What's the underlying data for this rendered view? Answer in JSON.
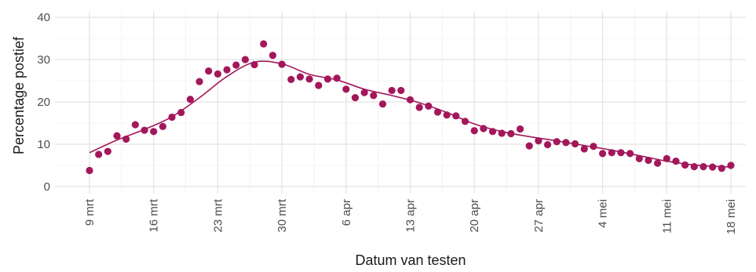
{
  "chart_data": {
    "type": "scatter",
    "title": "",
    "xlabel": "Datum van testen",
    "ylabel": "Percentage postief",
    "ylim": [
      0,
      40
    ],
    "yticks": [
      0,
      10,
      20,
      30,
      40
    ],
    "xticks": [
      {
        "date": "2020-03-09",
        "label": "9 mrt"
      },
      {
        "date": "2020-03-16",
        "label": "16 mrt"
      },
      {
        "date": "2020-03-23",
        "label": "23 mrt"
      },
      {
        "date": "2020-03-30",
        "label": "30 mrt"
      },
      {
        "date": "2020-04-06",
        "label": "6 apr"
      },
      {
        "date": "2020-04-13",
        "label": "13 apr"
      },
      {
        "date": "2020-04-20",
        "label": "20 apr"
      },
      {
        "date": "2020-04-27",
        "label": "27 apr"
      },
      {
        "date": "2020-05-04",
        "label": "4 mei"
      },
      {
        "date": "2020-05-11",
        "label": "11 mei"
      },
      {
        "date": "2020-05-18",
        "label": "18 mei"
      }
    ],
    "grid": true,
    "colors": {
      "points": "#a3175b",
      "trend": "#a3175b"
    },
    "series": [
      {
        "kind": "points",
        "x": [
          "2020-03-09",
          "2020-03-10",
          "2020-03-11",
          "2020-03-12",
          "2020-03-13",
          "2020-03-14",
          "2020-03-15",
          "2020-03-16",
          "2020-03-17",
          "2020-03-18",
          "2020-03-19",
          "2020-03-20",
          "2020-03-21",
          "2020-03-22",
          "2020-03-23",
          "2020-03-24",
          "2020-03-25",
          "2020-03-26",
          "2020-03-27",
          "2020-03-28",
          "2020-03-29",
          "2020-03-30",
          "2020-03-31",
          "2020-04-01",
          "2020-04-02",
          "2020-04-03",
          "2020-04-04",
          "2020-04-05",
          "2020-04-06",
          "2020-04-07",
          "2020-04-08",
          "2020-04-09",
          "2020-04-10",
          "2020-04-11",
          "2020-04-12",
          "2020-04-13",
          "2020-04-14",
          "2020-04-15",
          "2020-04-16",
          "2020-04-17",
          "2020-04-18",
          "2020-04-19",
          "2020-04-20",
          "2020-04-21",
          "2020-04-22",
          "2020-04-23",
          "2020-04-24",
          "2020-04-25",
          "2020-04-26",
          "2020-04-27",
          "2020-04-28",
          "2020-04-29",
          "2020-04-30",
          "2020-05-01",
          "2020-05-02",
          "2020-05-03",
          "2020-05-04",
          "2020-05-05",
          "2020-05-06",
          "2020-05-07",
          "2020-05-08",
          "2020-05-09",
          "2020-05-10",
          "2020-05-11",
          "2020-05-12",
          "2020-05-13",
          "2020-05-14",
          "2020-05-15",
          "2020-05-16",
          "2020-05-17",
          "2020-05-18"
        ],
        "y": [
          3.8,
          7.6,
          8.3,
          12.0,
          11.2,
          14.6,
          13.3,
          13.0,
          14.2,
          16.4,
          17.5,
          20.6,
          24.8,
          27.3,
          26.6,
          27.6,
          28.7,
          30.0,
          28.8,
          33.7,
          31.0,
          28.9,
          25.3,
          25.9,
          25.4,
          23.9,
          25.4,
          25.6,
          23.0,
          21.0,
          22.2,
          21.5,
          19.5,
          22.7,
          22.7,
          20.5,
          18.7,
          19.0,
          17.6,
          16.9,
          16.7,
          15.4,
          13.2,
          13.7,
          13.0,
          12.6,
          12.5,
          13.6,
          9.6,
          10.8,
          9.9,
          10.6,
          10.4,
          10.1,
          8.9,
          9.5,
          7.8,
          8.0,
          8.0,
          7.8,
          6.6,
          6.2,
          5.5,
          6.6,
          6.0,
          5.1,
          4.7,
          4.7,
          4.6,
          4.3,
          5.0
        ]
      },
      {
        "kind": "trend",
        "x": [
          "2020-03-09",
          "2020-03-12",
          "2020-03-15",
          "2020-03-18",
          "2020-03-21",
          "2020-03-24",
          "2020-03-27",
          "2020-03-30",
          "2020-04-02",
          "2020-04-05",
          "2020-04-08",
          "2020-04-11",
          "2020-04-14",
          "2020-04-17",
          "2020-04-20",
          "2020-04-23",
          "2020-04-26",
          "2020-04-29",
          "2020-05-02",
          "2020-05-05",
          "2020-05-08",
          "2020-05-11",
          "2020-05-14",
          "2020-05-18"
        ],
        "y": [
          8.0,
          11.0,
          13.5,
          16.5,
          21.0,
          26.0,
          29.4,
          29.0,
          26.5,
          25.2,
          23.0,
          21.5,
          19.8,
          17.5,
          14.8,
          13.0,
          11.8,
          10.8,
          9.7,
          8.6,
          7.3,
          6.0,
          5.1,
          4.6
        ]
      }
    ]
  }
}
